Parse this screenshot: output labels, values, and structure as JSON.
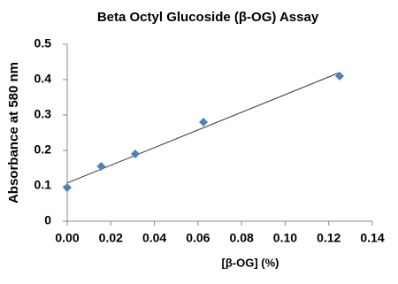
{
  "chart_data": {
    "type": "scatter",
    "title": "Beta Octyl Glucoside (β-OG) Assay",
    "x_label": "[β-OG] (%)",
    "y_label": "Absorbance at 580 nm",
    "series": [
      {
        "name": "β-OG",
        "color": "#4f81bd",
        "x": [
          0,
          0.0156,
          0.03125,
          0.0625,
          0.125
        ],
        "values": [
          0.095,
          0.155,
          0.19,
          0.28,
          0.41
        ]
      }
    ],
    "trendline": {
      "color": "#333333",
      "x": [
        0,
        0.125
      ],
      "values": [
        0.108,
        0.42
      ]
    },
    "xlim": [
      0,
      0.14
    ],
    "xticks": [
      {
        "value": 0,
        "label": "0.00"
      },
      {
        "value": 0.02,
        "label": "0.02"
      },
      {
        "value": 0.04,
        "label": "0.04"
      },
      {
        "value": 0.06,
        "label": "0.06"
      },
      {
        "value": 0.08,
        "label": "0.08"
      },
      {
        "value": 0.1,
        "label": "0.10"
      },
      {
        "value": 0.12,
        "label": "0.12"
      },
      {
        "value": 0.14,
        "label": "0.14"
      }
    ],
    "ylim": [
      0,
      0.5
    ],
    "yticks": [
      0,
      0.1,
      0.2,
      0.3,
      0.4,
      0.5
    ],
    "grid": false
  }
}
